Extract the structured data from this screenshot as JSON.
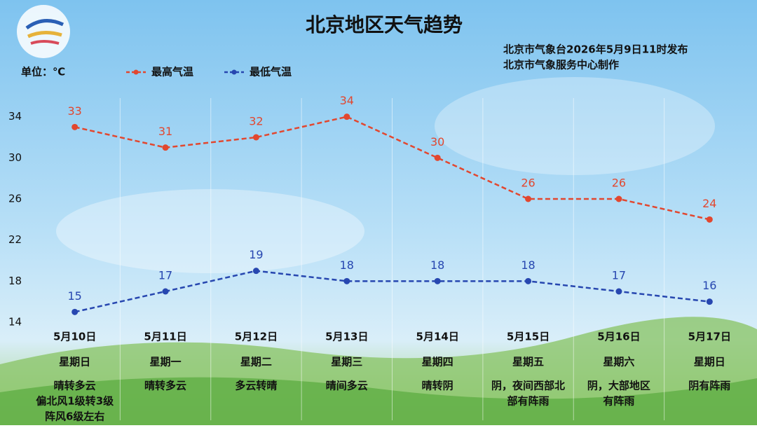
{
  "chart_data": {
    "type": "line",
    "title": "北京地区天气趋势",
    "source": [
      "北京市气象台2026年5月9日11时发布",
      "北京市气象服务中心制作"
    ],
    "unit_label": "单位：℃",
    "categories": [
      "5月10日",
      "5月11日",
      "5月12日",
      "5月13日",
      "5月14日",
      "5月15日",
      "5月16日",
      "5月17日"
    ],
    "weekdays": [
      "星期日",
      "星期一",
      "星期二",
      "星期三",
      "星期四",
      "星期五",
      "星期六",
      "星期日"
    ],
    "weather": [
      [
        "晴转多云",
        "偏北风1级转3级",
        "阵风6级左右"
      ],
      [
        "晴转多云"
      ],
      [
        "多云转晴"
      ],
      [
        "晴间多云"
      ],
      [
        "晴转阴"
      ],
      [
        "阴，夜间西部北",
        "部有阵雨"
      ],
      [
        "阴，大部地区",
        "有阵雨"
      ],
      [
        "阴有阵雨"
      ]
    ],
    "series": [
      {
        "name": "最高气温",
        "color": "#e2472f",
        "values": [
          33,
          31,
          32,
          34,
          30,
          26,
          26,
          24
        ]
      },
      {
        "name": "最低气温",
        "color": "#2747b0",
        "values": [
          15,
          17,
          19,
          18,
          18,
          18,
          17,
          16
        ]
      }
    ],
    "ylim": [
      14,
      35
    ],
    "yticks": [
      14,
      18,
      22,
      26,
      30,
      34
    ],
    "grid": false
  }
}
